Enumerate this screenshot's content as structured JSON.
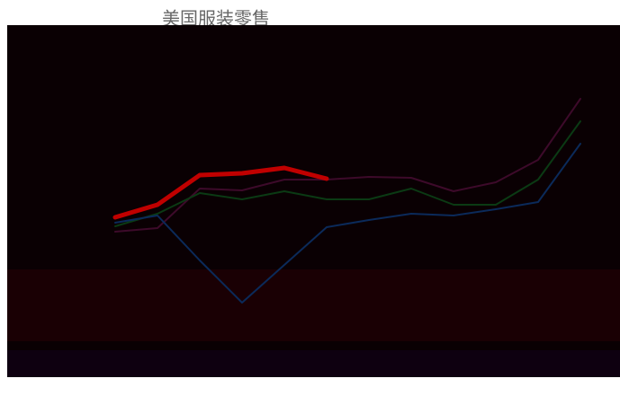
{
  "chart_data": {
    "type": "line",
    "title": "美国服装零售",
    "categories": [
      null,
      null,
      null,
      null,
      null,
      null,
      null,
      null,
      null,
      null,
      null,
      null
    ],
    "ylim": [
      0,
      150
    ],
    "series": [
      {
        "color": "#3d0a2a",
        "values": [
          41,
          43,
          65,
          64,
          70,
          70,
          71.5,
          71,
          63.5,
          68.5,
          81,
          115
        ]
      },
      {
        "color": "#0b3a14",
        "values": [
          44,
          51,
          62.5,
          59,
          63.5,
          59,
          59,
          65,
          56,
          56,
          70,
          102.5
        ]
      },
      {
        "color": "#0b2a5a",
        "values": [
          46,
          50,
          25,
          1.5,
          22.5,
          43.5,
          47.5,
          51,
          50,
          53.5,
          57.5,
          90
        ]
      },
      {
        "color": "#c00000",
        "values": [
          49,
          56,
          72.5,
          73.5,
          76.5,
          70.5,
          null,
          null,
          null,
          null,
          null,
          null
        ]
      }
    ]
  }
}
